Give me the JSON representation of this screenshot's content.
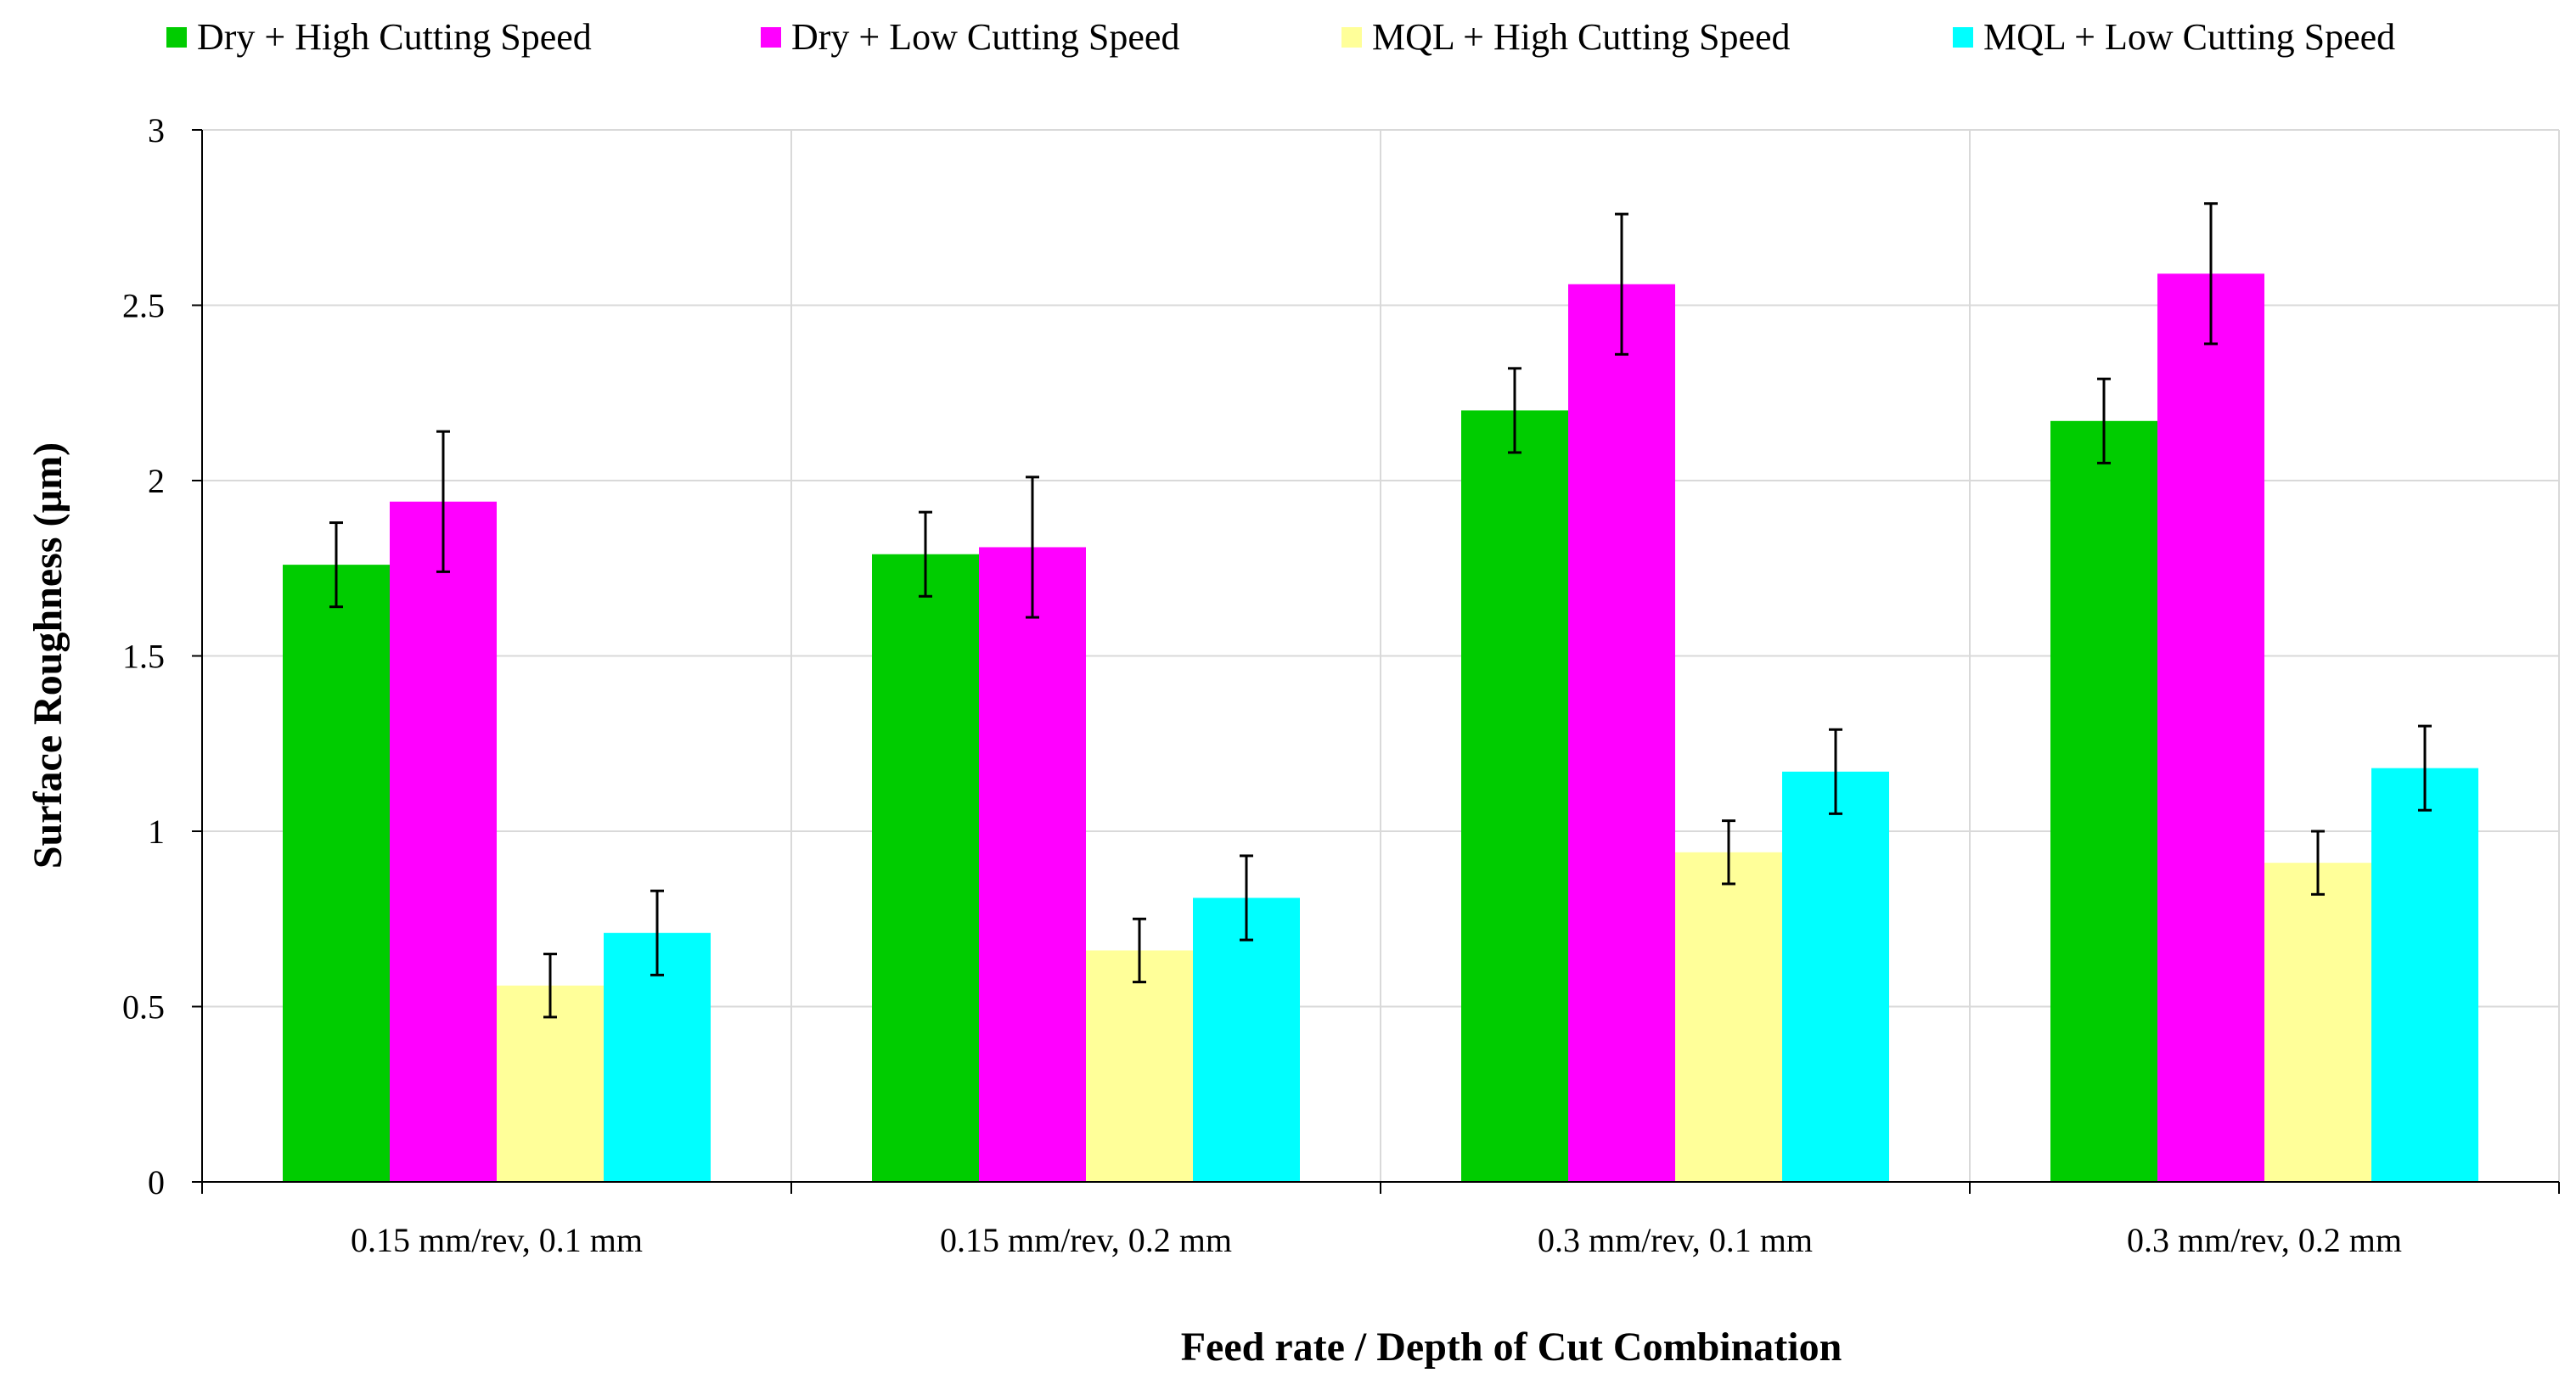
{
  "chart_data": {
    "type": "bar",
    "title": "",
    "xlabel": "Feed rate / Depth of Cut Combination",
    "ylabel": "Surface Roughness (µm)",
    "ylim": [
      0,
      3
    ],
    "yticks": [
      "0",
      "0.5",
      "1",
      "1.5",
      "2",
      "2.5",
      "3"
    ],
    "grid": true,
    "legend_position": "top",
    "categories": [
      "0.15 mm/rev, 0.1 mm",
      "0.15 mm/rev, 0.2 mm",
      "0.3 mm/rev, 0.1 mm",
      "0.3 mm/rev, 0.2 mm"
    ],
    "series": [
      {
        "name": "Dry + High Cutting Speed",
        "color": "#00CC00",
        "values": [
          1.76,
          1.79,
          2.2,
          2.17
        ],
        "errors": [
          0.12,
          0.12,
          0.12,
          0.12
        ]
      },
      {
        "name": "Dry + Low Cutting Speed",
        "color": "#FF00FF",
        "values": [
          1.94,
          1.81,
          2.56,
          2.59
        ],
        "errors": [
          0.2,
          0.2,
          0.2,
          0.2
        ]
      },
      {
        "name": "MQL + High Cutting Speed",
        "color": "#FFFF99",
        "values": [
          0.56,
          0.66,
          0.94,
          0.91
        ],
        "errors": [
          0.09,
          0.09,
          0.09,
          0.09
        ]
      },
      {
        "name": "MQL + Low Cutting Speed",
        "color": "#00FFFF",
        "values": [
          0.71,
          0.81,
          1.17,
          1.18
        ],
        "errors": [
          0.12,
          0.12,
          0.12,
          0.12
        ]
      }
    ]
  }
}
